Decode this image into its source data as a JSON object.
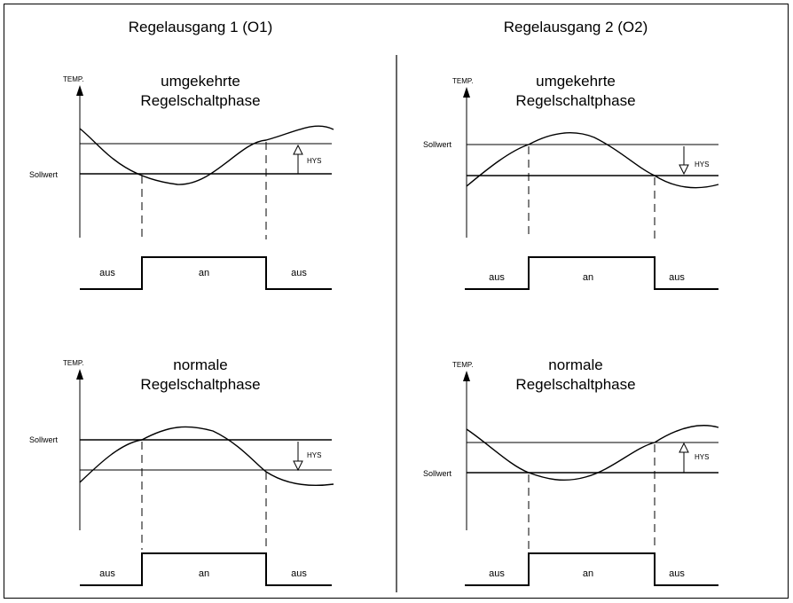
{
  "columns": [
    {
      "title": "Regelausgang 1 (O1)",
      "panels": [
        {
          "axis_label": "TEMP.",
          "phase_line1": "umgekehrte",
          "phase_line2": "Regelschaltphase",
          "setpoint_label": "Sollwert",
          "hys_label": "HYS",
          "states": {
            "left": "aus",
            "middle": "an",
            "right": "aus"
          }
        },
        {
          "axis_label": "TEMP.",
          "phase_line1": "normale",
          "phase_line2": "Regelschaltphase",
          "setpoint_label": "Sollwert",
          "hys_label": "HYS",
          "states": {
            "left": "aus",
            "middle": "an",
            "right": "aus"
          }
        }
      ]
    },
    {
      "title": "Regelausgang 2 (O2)",
      "panels": [
        {
          "axis_label": "TEMP.",
          "phase_line1": "umgekehrte",
          "phase_line2": "Regelschaltphase",
          "setpoint_label": "Sollwert",
          "hys_label": "HYS",
          "states": {
            "left": "aus",
            "middle": "an",
            "right": "aus"
          }
        },
        {
          "axis_label": "TEMP.",
          "phase_line1": "normale",
          "phase_line2": "Regelschaltphase",
          "setpoint_label": "Sollwert",
          "hys_label": "HYS",
          "states": {
            "left": "aus",
            "middle": "an",
            "right": "aus"
          }
        }
      ]
    }
  ]
}
